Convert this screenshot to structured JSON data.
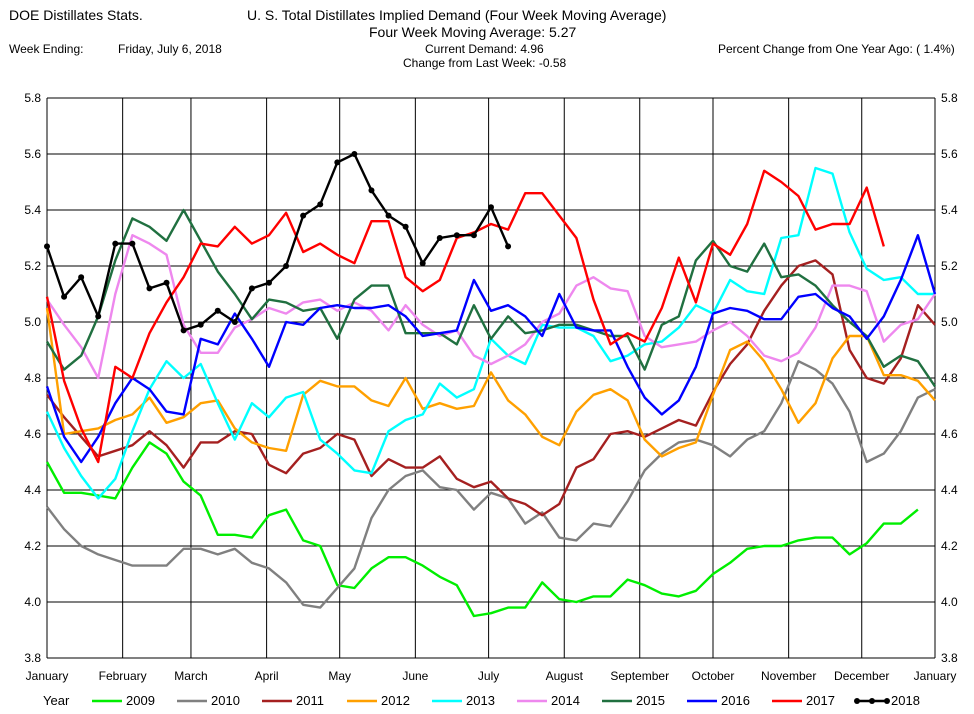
{
  "header": {
    "app_title": "DOE Distillates Stats.",
    "chart_title": "U. S. Total Distillates Implied Demand  (Four Week Moving Average)",
    "moving_average": "Four Week Moving Average:  5.27",
    "week_ending_label": "Week Ending:",
    "week_ending_value": "Friday, July 6, 2018",
    "current_demand": "Current Demand:  4.96",
    "change_last_week": "Change from Last Week: -0.58",
    "percent_change": "Percent Change from One Year Ago: ( 1.4%)"
  },
  "chart_data": {
    "type": "line",
    "title": "U. S. Total Distillates Implied Demand  (Four Week Moving Average)",
    "ylim": [
      3.8,
      5.8
    ],
    "yticks": [
      "3.8",
      "4.0",
      "4.2",
      "4.4",
      "4.6",
      "4.8",
      "5.0",
      "5.2",
      "5.4",
      "5.6",
      "5.8"
    ],
    "ytick_values": [
      3.8,
      4.0,
      4.2,
      4.4,
      4.6,
      4.8,
      5.0,
      5.2,
      5.4,
      5.6,
      5.8
    ],
    "x_week_range": [
      1,
      53
    ],
    "month_labels": [
      "January",
      "February",
      "March",
      "April",
      "May",
      "June",
      "July",
      "August",
      "September",
      "October",
      "November",
      "December",
      "January"
    ],
    "month_weeks": [
      1,
      5.43,
      9.43,
      13.86,
      18.14,
      22.57,
      26.86,
      31.29,
      35.71,
      40,
      44.43,
      48.71,
      53
    ],
    "grid": true,
    "legend_title": "Year",
    "legend_position": "bottom",
    "series": [
      {
        "name": "2009",
        "color": "#00ee00",
        "marker": false,
        "values": [
          4.5,
          4.39,
          4.39,
          4.38,
          4.37,
          4.48,
          4.57,
          4.53,
          4.43,
          4.38,
          4.24,
          4.24,
          4.23,
          4.31,
          4.33,
          4.22,
          4.2,
          4.06,
          4.05,
          4.12,
          4.16,
          4.16,
          4.13,
          4.09,
          4.06,
          3.95,
          3.96,
          3.98,
          3.98,
          4.07,
          4.01,
          4.0,
          4.02,
          4.02,
          4.08,
          4.06,
          4.03,
          4.02,
          4.04,
          4.1,
          4.14,
          4.19,
          4.2,
          4.2,
          4.22,
          4.23,
          4.23,
          4.17,
          4.21,
          4.28,
          4.28,
          4.33
        ]
      },
      {
        "name": "2010",
        "color": "#808080",
        "marker": false,
        "values": [
          4.34,
          4.26,
          4.2,
          4.17,
          4.15,
          4.13,
          4.13,
          4.13,
          4.19,
          4.19,
          4.17,
          4.19,
          4.14,
          4.12,
          4.07,
          3.99,
          3.98,
          4.05,
          4.12,
          4.3,
          4.4,
          4.45,
          4.47,
          4.41,
          4.4,
          4.33,
          4.39,
          4.37,
          4.28,
          4.32,
          4.23,
          4.22,
          4.28,
          4.27,
          4.36,
          4.47,
          4.53,
          4.57,
          4.58,
          4.56,
          4.52,
          4.58,
          4.61,
          4.71,
          4.86,
          4.83,
          4.78,
          4.68,
          4.5,
          4.53,
          4.61,
          4.73,
          4.76
        ]
      },
      {
        "name": "2011",
        "color": "#a52020",
        "marker": false,
        "values": [
          4.74,
          4.66,
          4.59,
          4.52,
          4.54,
          4.56,
          4.61,
          4.56,
          4.48,
          4.57,
          4.57,
          4.61,
          4.6,
          4.49,
          4.46,
          4.53,
          4.55,
          4.6,
          4.58,
          4.45,
          4.51,
          4.48,
          4.48,
          4.52,
          4.44,
          4.41,
          4.43,
          4.37,
          4.35,
          4.31,
          4.35,
          4.48,
          4.51,
          4.6,
          4.61,
          4.59,
          4.62,
          4.65,
          4.63,
          4.75,
          4.85,
          4.92,
          5.04,
          5.13,
          5.2,
          5.22,
          5.17,
          4.9,
          4.8,
          4.78,
          4.87,
          5.06,
          4.99
        ]
      },
      {
        "name": "2012",
        "color": "#ffa000",
        "marker": false,
        "values": [
          5.05,
          4.6,
          4.61,
          4.62,
          4.65,
          4.67,
          4.73,
          4.64,
          4.66,
          4.71,
          4.72,
          4.62,
          4.57,
          4.55,
          4.54,
          4.74,
          4.79,
          4.77,
          4.77,
          4.72,
          4.7,
          4.8,
          4.69,
          4.71,
          4.69,
          4.7,
          4.82,
          4.72,
          4.67,
          4.59,
          4.56,
          4.68,
          4.74,
          4.76,
          4.72,
          4.58,
          4.52,
          4.55,
          4.57,
          4.74,
          4.9,
          4.93,
          4.86,
          4.76,
          4.64,
          4.71,
          4.87,
          4.95,
          4.95,
          4.81,
          4.81,
          4.79,
          4.72
        ]
      },
      {
        "name": "2013",
        "color": "#00ffff",
        "marker": false,
        "values": [
          4.68,
          4.55,
          4.45,
          4.37,
          4.44,
          4.61,
          4.76,
          4.86,
          4.8,
          4.85,
          4.71,
          4.58,
          4.71,
          4.66,
          4.73,
          4.75,
          4.58,
          4.53,
          4.47,
          4.46,
          4.61,
          4.65,
          4.67,
          4.78,
          4.73,
          4.76,
          4.94,
          4.88,
          4.85,
          4.99,
          4.98,
          4.98,
          4.95,
          4.86,
          4.88,
          4.92,
          4.93,
          4.98,
          5.06,
          5.03,
          5.15,
          5.11,
          5.1,
          5.3,
          5.31,
          5.55,
          5.53,
          5.32,
          5.19,
          5.15,
          5.16,
          5.1,
          5.1
        ]
      },
      {
        "name": "2014",
        "color": "#ee88ee",
        "marker": false,
        "values": [
          5.08,
          4.99,
          4.91,
          4.8,
          5.1,
          5.31,
          5.28,
          5.24,
          4.99,
          4.89,
          4.89,
          4.98,
          5.01,
          5.05,
          5.03,
          5.07,
          5.08,
          5.04,
          5.07,
          5.04,
          4.97,
          5.06,
          4.99,
          4.95,
          4.97,
          4.88,
          4.85,
          4.88,
          4.92,
          5.0,
          5.03,
          5.13,
          5.16,
          5.12,
          5.11,
          4.95,
          4.91,
          4.92,
          4.93,
          4.97,
          5.0,
          4.95,
          4.88,
          4.86,
          4.89,
          4.98,
          5.13,
          5.13,
          5.11,
          4.93,
          4.99,
          5.01,
          5.1
        ]
      },
      {
        "name": "2015",
        "color": "#207040",
        "marker": false,
        "values": [
          4.93,
          4.83,
          4.88,
          5.02,
          5.22,
          5.37,
          5.34,
          5.29,
          5.4,
          5.29,
          5.18,
          5.1,
          5.01,
          5.08,
          5.07,
          5.04,
          5.05,
          4.94,
          5.08,
          5.13,
          5.13,
          4.96,
          4.96,
          4.96,
          4.92,
          5.06,
          4.94,
          5.02,
          4.96,
          4.97,
          4.99,
          4.99,
          4.97,
          4.95,
          4.95,
          4.83,
          4.99,
          5.02,
          5.22,
          5.29,
          5.2,
          5.18,
          5.28,
          5.16,
          5.17,
          5.13,
          5.06,
          5.0,
          4.95,
          4.84,
          4.88,
          4.86,
          4.77
        ]
      },
      {
        "name": "2016",
        "color": "#0000ff",
        "marker": false,
        "values": [
          4.77,
          4.59,
          4.5,
          4.59,
          4.71,
          4.8,
          4.76,
          4.68,
          4.67,
          4.94,
          4.92,
          5.03,
          4.94,
          4.84,
          5.0,
          4.99,
          5.05,
          5.06,
          5.05,
          5.05,
          5.06,
          5.02,
          4.95,
          4.96,
          4.97,
          5.15,
          5.04,
          5.06,
          5.02,
          4.95,
          5.1,
          4.98,
          4.97,
          4.97,
          4.84,
          4.73,
          4.67,
          4.72,
          4.84,
          5.03,
          5.05,
          5.04,
          5.01,
          5.01,
          5.09,
          5.1,
          5.05,
          5.02,
          4.94,
          5.02,
          5.15,
          5.31,
          5.1
        ]
      },
      {
        "name": "2017",
        "color": "#ff0000",
        "marker": false,
        "values": [
          5.09,
          4.79,
          4.62,
          4.5,
          4.84,
          4.8,
          4.96,
          5.07,
          5.16,
          5.28,
          5.27,
          5.34,
          5.28,
          5.31,
          5.39,
          5.25,
          5.28,
          5.24,
          5.21,
          5.36,
          5.36,
          5.16,
          5.11,
          5.15,
          5.3,
          5.32,
          5.35,
          5.33,
          5.46,
          5.46,
          5.38,
          5.3,
          5.08,
          4.92,
          4.96,
          4.93,
          5.05,
          5.23,
          5.07,
          5.28,
          5.24,
          5.35,
          5.54,
          5.5,
          5.45,
          5.33,
          5.35,
          5.35,
          5.48,
          5.27
        ]
      },
      {
        "name": "2018",
        "color": "#000000",
        "marker": true,
        "values": [
          5.27,
          5.09,
          5.16,
          5.02,
          5.28,
          5.28,
          5.12,
          5.14,
          4.97,
          4.99,
          5.04,
          5.0,
          5.12,
          5.14,
          5.2,
          5.38,
          5.42,
          5.57,
          5.6,
          5.47,
          5.38,
          5.34,
          5.21,
          5.3,
          5.31,
          5.31,
          5.41,
          5.27
        ]
      }
    ]
  }
}
